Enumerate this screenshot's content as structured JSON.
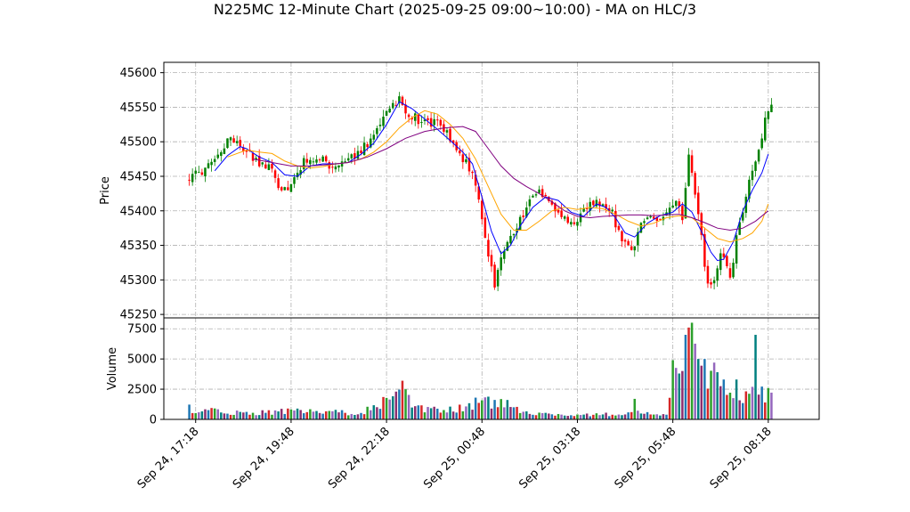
{
  "chart_data": {
    "type": "candlestick",
    "title": "N225MC 12-Minute Chart (2025-09-25 09:00~10:00) - MA on HLC/3",
    "price_axis": {
      "label": "Price",
      "ylim": [
        45245,
        45615
      ],
      "ticks": [
        45250,
        45300,
        45350,
        45400,
        45450,
        45500,
        45550,
        45600
      ]
    },
    "volume_axis": {
      "label": "Volume",
      "ylim": [
        0,
        8400
      ],
      "ticks": [
        0,
        2500,
        5000,
        7500
      ]
    },
    "x_axis": {
      "range": [
        -8,
        198
      ],
      "ticks": [
        {
          "i": 2,
          "label": "Sep 24, 17:18"
        },
        {
          "i": 32,
          "label": "Sep 24, 19:48"
        },
        {
          "i": 62,
          "label": "Sep 24, 22:18"
        },
        {
          "i": 92,
          "label": "Sep 25, 00:48"
        },
        {
          "i": 122,
          "label": "Sep 25, 03:18"
        },
        {
          "i": 152,
          "label": "Sep 25, 05:48"
        },
        {
          "i": 182,
          "label": "Sep 25, 08:18"
        }
      ]
    },
    "grid": true,
    "colors": {
      "up": "#008000",
      "down": "#ff0000",
      "ma_fast": "#0000ff",
      "ma_mid": "#ffa500",
      "ma_slow": "#800080"
    },
    "price_anchors": [
      [
        0,
        45448
      ],
      [
        3,
        45455
      ],
      [
        7,
        45465
      ],
      [
        10,
        45482
      ],
      [
        12,
        45506
      ],
      [
        15,
        45500
      ],
      [
        18,
        45485
      ],
      [
        22,
        45470
      ],
      [
        26,
        45458
      ],
      [
        29,
        45428
      ],
      [
        32,
        45440
      ],
      [
        36,
        45470
      ],
      [
        40,
        45480
      ],
      [
        45,
        45460
      ],
      [
        50,
        45470
      ],
      [
        53,
        45488
      ],
      [
        56,
        45495
      ],
      [
        58,
        45512
      ],
      [
        60,
        45525
      ],
      [
        62,
        45545
      ],
      [
        64,
        45555
      ],
      [
        66,
        45563
      ],
      [
        68,
        45540
      ],
      [
        71,
        45535
      ],
      [
        74,
        45528
      ],
      [
        78,
        45525
      ],
      [
        81,
        45510
      ],
      [
        84,
        45490
      ],
      [
        87,
        45470
      ],
      [
        90,
        45440
      ],
      [
        92,
        45390
      ],
      [
        94,
        45335
      ],
      [
        96,
        45295
      ],
      [
        98,
        45338
      ],
      [
        101,
        45360
      ],
      [
        104,
        45388
      ],
      [
        107,
        45412
      ],
      [
        110,
        45430
      ],
      [
        113,
        45418
      ],
      [
        116,
        45395
      ],
      [
        119,
        45380
      ],
      [
        122,
        45390
      ],
      [
        125,
        45405
      ],
      [
        128,
        45415
      ],
      [
        130,
        45405
      ],
      [
        133,
        45395
      ],
      [
        136,
        45355
      ],
      [
        139,
        45340
      ],
      [
        142,
        45380
      ],
      [
        145,
        45395
      ],
      [
        148,
        45385
      ],
      [
        151,
        45400
      ],
      [
        153,
        45415
      ],
      [
        155,
        45385
      ],
      [
        157,
        45480
      ],
      [
        159,
        45420
      ],
      [
        161,
        45360
      ],
      [
        163,
        45290
      ],
      [
        165,
        45300
      ],
      [
        167,
        45340
      ],
      [
        170,
        45300
      ],
      [
        172,
        45360
      ],
      [
        174,
        45400
      ],
      [
        176,
        45445
      ],
      [
        178,
        45470
      ],
      [
        180,
        45510
      ],
      [
        181,
        45530
      ],
      [
        182,
        45550
      ]
    ],
    "ma_fast": [
      [
        8,
        45458
      ],
      [
        12,
        45480
      ],
      [
        16,
        45493
      ],
      [
        18,
        45490
      ],
      [
        22,
        45478
      ],
      [
        26,
        45470
      ],
      [
        30,
        45452
      ],
      [
        34,
        45450
      ],
      [
        38,
        45465
      ],
      [
        42,
        45468
      ],
      [
        46,
        45468
      ],
      [
        50,
        45470
      ],
      [
        54,
        45482
      ],
      [
        58,
        45498
      ],
      [
        62,
        45525
      ],
      [
        66,
        45558
      ],
      [
        70,
        45548
      ],
      [
        74,
        45533
      ],
      [
        78,
        45518
      ],
      [
        82,
        45502
      ],
      [
        86,
        45485
      ],
      [
        89,
        45468
      ],
      [
        92,
        45420
      ],
      [
        95,
        45370
      ],
      [
        98,
        45338
      ],
      [
        101,
        45350
      ],
      [
        104,
        45378
      ],
      [
        108,
        45405
      ],
      [
        112,
        45420
      ],
      [
        116,
        45415
      ],
      [
        120,
        45398
      ],
      [
        124,
        45392
      ],
      [
        128,
        45410
      ],
      [
        131,
        45405
      ],
      [
        134,
        45390
      ],
      [
        137,
        45368
      ],
      [
        140,
        45362
      ],
      [
        144,
        45382
      ],
      [
        148,
        45393
      ],
      [
        152,
        45398
      ],
      [
        155,
        45410
      ],
      [
        158,
        45398
      ],
      [
        161,
        45370
      ],
      [
        164,
        45340
      ],
      [
        166,
        45328
      ],
      [
        168,
        45330
      ],
      [
        171,
        45355
      ],
      [
        174,
        45400
      ],
      [
        177,
        45430
      ],
      [
        180,
        45455
      ],
      [
        182,
        45482
      ]
    ],
    "ma_mid": [
      [
        12,
        45478
      ],
      [
        18,
        45488
      ],
      [
        22,
        45485
      ],
      [
        26,
        45483
      ],
      [
        30,
        45472
      ],
      [
        34,
        45465
      ],
      [
        38,
        45462
      ],
      [
        42,
        45464
      ],
      [
        46,
        45468
      ],
      [
        50,
        45470
      ],
      [
        54,
        45475
      ],
      [
        58,
        45485
      ],
      [
        62,
        45500
      ],
      [
        66,
        45520
      ],
      [
        70,
        45535
      ],
      [
        74,
        45545
      ],
      [
        78,
        45540
      ],
      [
        82,
        45525
      ],
      [
        86,
        45505
      ],
      [
        90,
        45475
      ],
      [
        94,
        45435
      ],
      [
        98,
        45395
      ],
      [
        102,
        45372
      ],
      [
        106,
        45372
      ],
      [
        110,
        45385
      ],
      [
        114,
        45400
      ],
      [
        118,
        45405
      ],
      [
        122,
        45402
      ],
      [
        126,
        45405
      ],
      [
        130,
        45403
      ],
      [
        134,
        45395
      ],
      [
        138,
        45385
      ],
      [
        142,
        45378
      ],
      [
        146,
        45382
      ],
      [
        150,
        45390
      ],
      [
        154,
        45393
      ],
      [
        158,
        45390
      ],
      [
        162,
        45375
      ],
      [
        166,
        45360
      ],
      [
        170,
        45355
      ],
      [
        174,
        45360
      ],
      [
        177,
        45368
      ],
      [
        180,
        45385
      ],
      [
        182,
        45410
      ]
    ],
    "ma_slow": [
      [
        20,
        45475
      ],
      [
        26,
        45470
      ],
      [
        32,
        45465
      ],
      [
        38,
        45465
      ],
      [
        44,
        45467
      ],
      [
        50,
        45470
      ],
      [
        56,
        45478
      ],
      [
        62,
        45490
      ],
      [
        68,
        45505
      ],
      [
        74,
        45515
      ],
      [
        80,
        45520
      ],
      [
        86,
        45522
      ],
      [
        90,
        45515
      ],
      [
        94,
        45490
      ],
      [
        98,
        45465
      ],
      [
        102,
        45447
      ],
      [
        106,
        45435
      ],
      [
        110,
        45425
      ],
      [
        114,
        45413
      ],
      [
        118,
        45400
      ],
      [
        122,
        45392
      ],
      [
        126,
        45390
      ],
      [
        130,
        45392
      ],
      [
        134,
        45393
      ],
      [
        138,
        45394
      ],
      [
        142,
        45394
      ],
      [
        146,
        45393
      ],
      [
        150,
        45394
      ],
      [
        154,
        45395
      ],
      [
        158,
        45390
      ],
      [
        162,
        45383
      ],
      [
        166,
        45375
      ],
      [
        170,
        45372
      ],
      [
        174,
        45375
      ],
      [
        178,
        45385
      ],
      [
        182,
        45400
      ]
    ],
    "volume_anchors": [
      [
        0,
        900
      ],
      [
        10,
        600
      ],
      [
        20,
        500
      ],
      [
        30,
        700
      ],
      [
        40,
        600
      ],
      [
        50,
        550
      ],
      [
        55,
        700
      ],
      [
        60,
        1300
      ],
      [
        65,
        1800
      ],
      [
        67,
        2600
      ],
      [
        70,
        900
      ],
      [
        75,
        800
      ],
      [
        80,
        700
      ],
      [
        85,
        900
      ],
      [
        89,
        1200
      ],
      [
        92,
        1500
      ],
      [
        96,
        1300
      ],
      [
        100,
        1200
      ],
      [
        104,
        800
      ],
      [
        110,
        500
      ],
      [
        120,
        350
      ],
      [
        130,
        400
      ],
      [
        140,
        500
      ],
      [
        144,
        600
      ],
      [
        148,
        350
      ],
      [
        150,
        300
      ],
      [
        152,
        2500
      ],
      [
        155,
        4500
      ],
      [
        157,
        6500
      ],
      [
        159,
        4500
      ],
      [
        162,
        4000
      ],
      [
        165,
        3500
      ],
      [
        168,
        2500
      ],
      [
        171,
        2000
      ],
      [
        174,
        2000
      ],
      [
        177,
        2200
      ],
      [
        180,
        2000
      ],
      [
        182,
        1800
      ]
    ],
    "volume_spikes": [
      [
        152,
        4900
      ],
      [
        156,
        7000
      ],
      [
        157,
        7600
      ],
      [
        158,
        8000
      ],
      [
        160,
        5000
      ],
      [
        162,
        5000
      ],
      [
        165,
        4700
      ],
      [
        168,
        3300
      ],
      [
        172,
        3300
      ],
      [
        178,
        7000
      ],
      [
        182,
        2600
      ],
      [
        67,
        3200
      ],
      [
        65,
        2300
      ],
      [
        90,
        1800
      ],
      [
        140,
        1700
      ]
    ]
  }
}
